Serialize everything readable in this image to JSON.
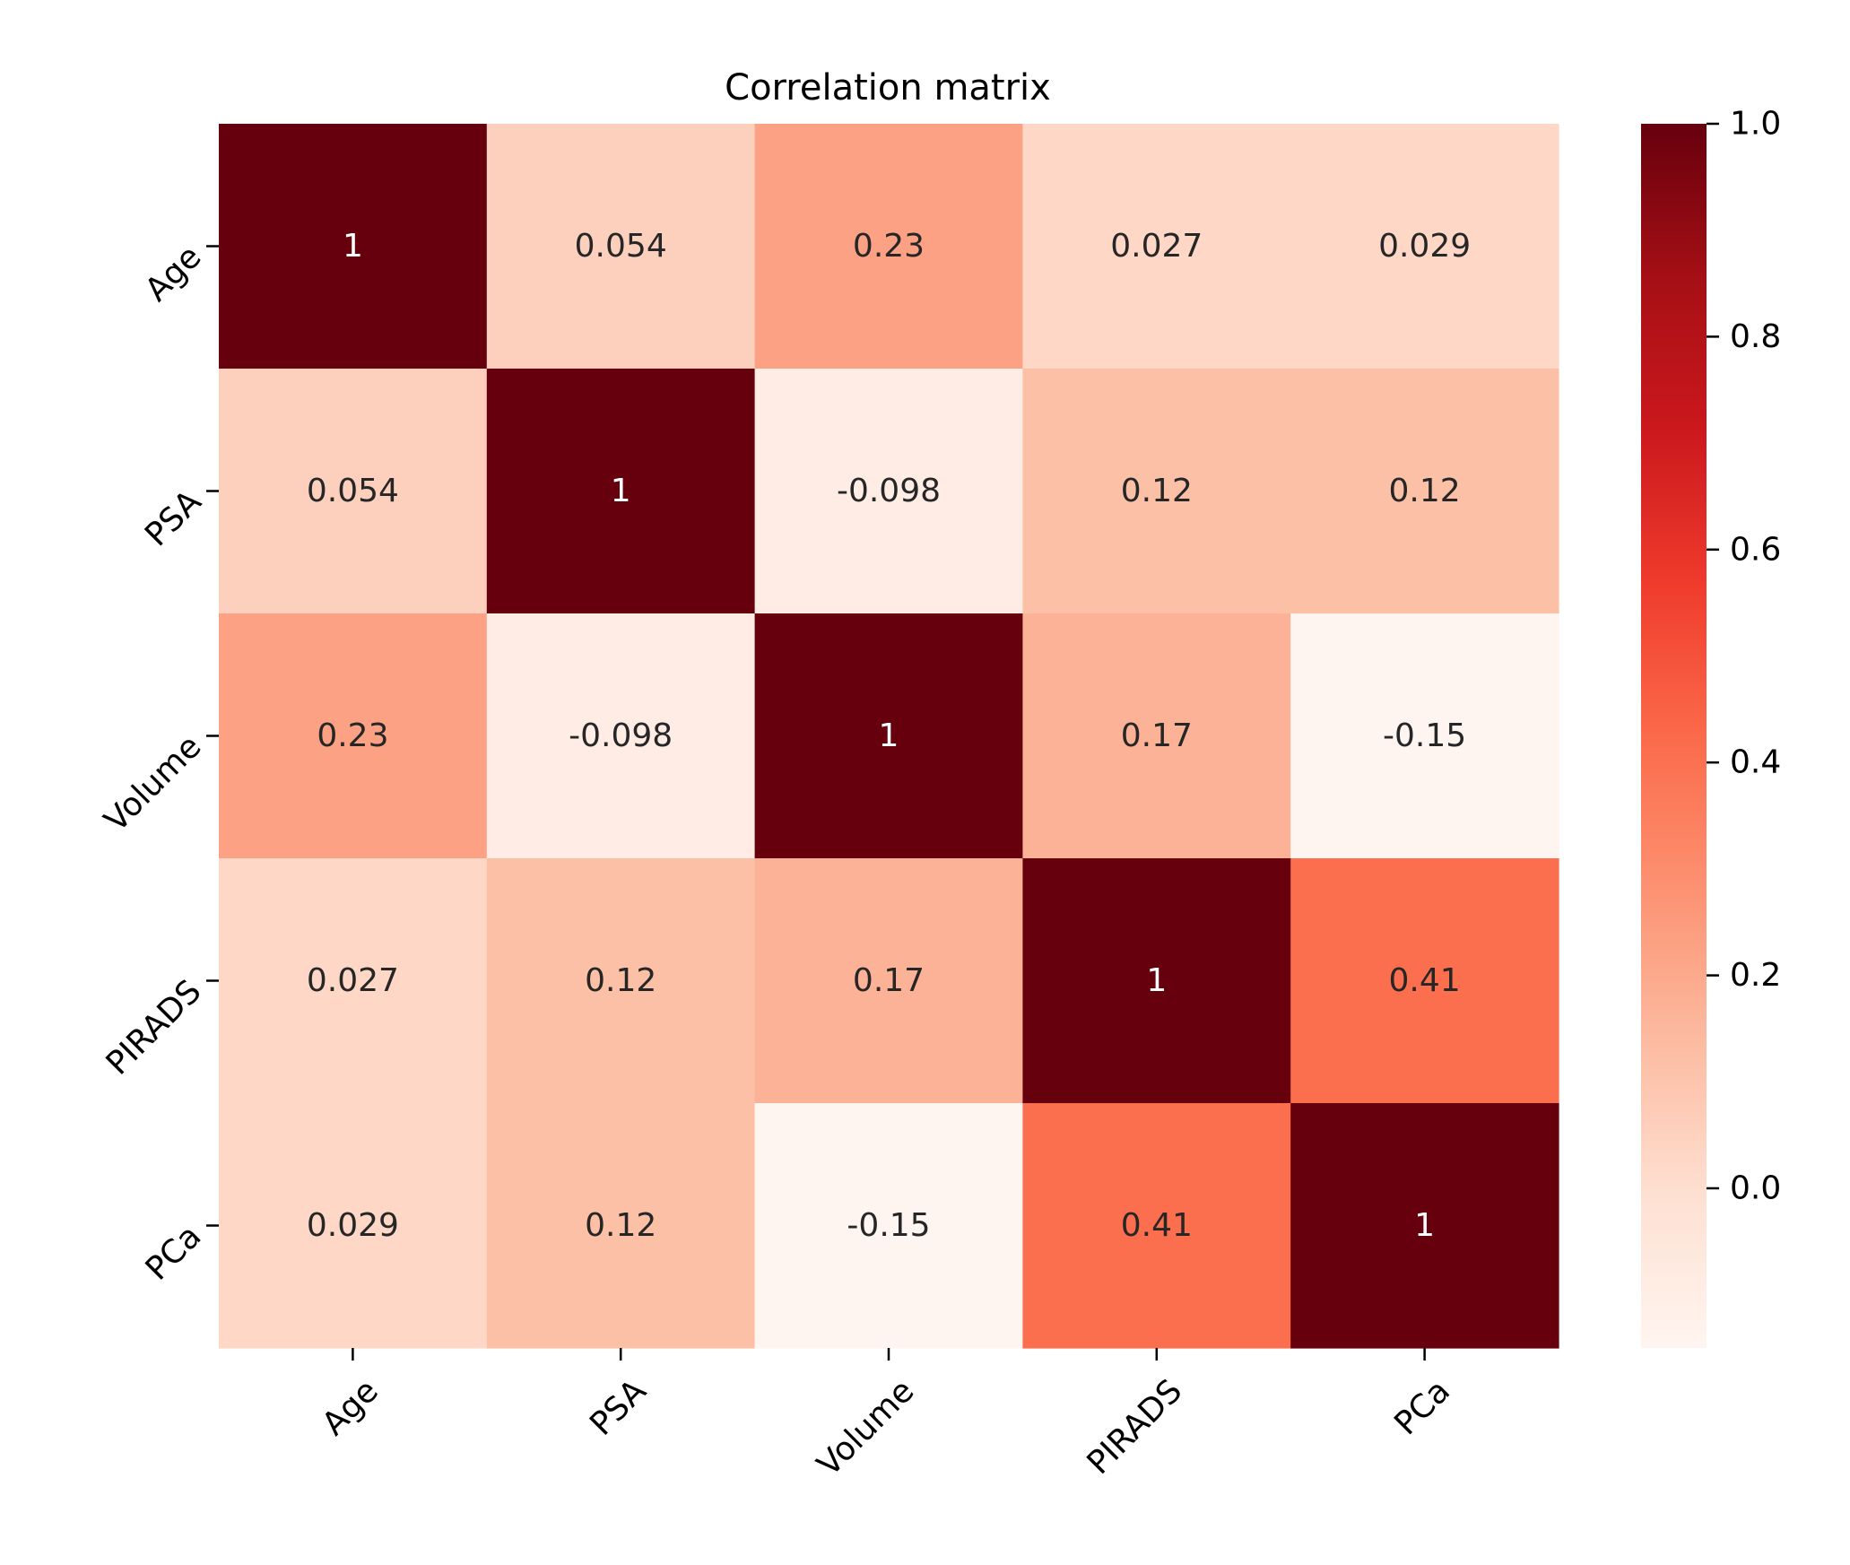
{
  "chart_data": {
    "type": "heatmap",
    "title": "Correlation matrix",
    "xlabel": "",
    "ylabel": "",
    "x_categories": [
      "Age",
      "PSA",
      "Volume",
      "PIRADS",
      "PCa"
    ],
    "y_categories": [
      "Age",
      "PSA",
      "Volume",
      "PIRADS",
      "PCa"
    ],
    "values": [
      [
        1,
        0.054,
        0.23,
        0.027,
        0.029
      ],
      [
        0.054,
        1,
        -0.098,
        0.12,
        0.12
      ],
      [
        0.23,
        -0.098,
        1,
        0.17,
        -0.15
      ],
      [
        0.027,
        0.12,
        0.17,
        1,
        0.41
      ],
      [
        0.029,
        0.12,
        -0.15,
        0.41,
        1
      ]
    ],
    "value_labels": [
      [
        "1",
        "0.054",
        "0.23",
        "0.027",
        "0.029"
      ],
      [
        "0.054",
        "1",
        "-0.098",
        "0.12",
        "0.12"
      ],
      [
        "0.23",
        "-0.098",
        "1",
        "0.17",
        "-0.15"
      ],
      [
        "0.027",
        "0.12",
        "0.17",
        "1",
        "0.41"
      ],
      [
        "0.029",
        "0.12",
        "-0.15",
        "0.41",
        "1"
      ]
    ],
    "colormap": "Reds",
    "colorbar": {
      "range": [
        -0.15,
        1.0
      ],
      "ticks": [
        0.0,
        0.2,
        0.4,
        0.6,
        0.8,
        1.0
      ],
      "tick_labels": [
        "0.0",
        "0.2",
        "0.4",
        "0.6",
        "0.8",
        "1.0"
      ]
    },
    "tick_label_rotation": 45
  }
}
